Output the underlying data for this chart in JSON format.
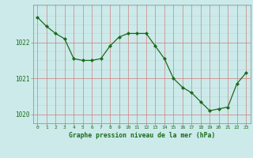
{
  "x": [
    0,
    1,
    2,
    3,
    4,
    5,
    6,
    7,
    8,
    9,
    10,
    11,
    12,
    13,
    14,
    15,
    16,
    17,
    18,
    19,
    20,
    21,
    22,
    23
  ],
  "y": [
    1022.7,
    1022.45,
    1022.25,
    1022.1,
    1021.55,
    1021.5,
    1021.5,
    1021.55,
    1021.9,
    1022.15,
    1022.25,
    1022.25,
    1022.25,
    1021.9,
    1021.55,
    1021.0,
    1020.75,
    1020.6,
    1020.35,
    1020.1,
    1020.15,
    1020.2,
    1020.85,
    1021.15
  ],
  "line_color": "#1a6b1a",
  "marker": "D",
  "marker_size": 2.0,
  "bg_color": "#cceaea",
  "red_grid_color": "#d08080",
  "light_grid_color": "#b8dede",
  "xlabel": "Graphe pression niveau de la mer (hPa)",
  "xlabel_color": "#1a6b1a",
  "tick_color": "#1a6b1a",
  "spine_color": "#888888",
  "ylim": [
    1019.75,
    1023.05
  ],
  "yticks": [
    1020,
    1021,
    1022
  ],
  "xlim": [
    -0.5,
    23.5
  ],
  "xticks": [
    0,
    1,
    2,
    3,
    4,
    5,
    6,
    7,
    8,
    9,
    10,
    11,
    12,
    13,
    14,
    15,
    16,
    17,
    18,
    19,
    20,
    21,
    22,
    23
  ]
}
